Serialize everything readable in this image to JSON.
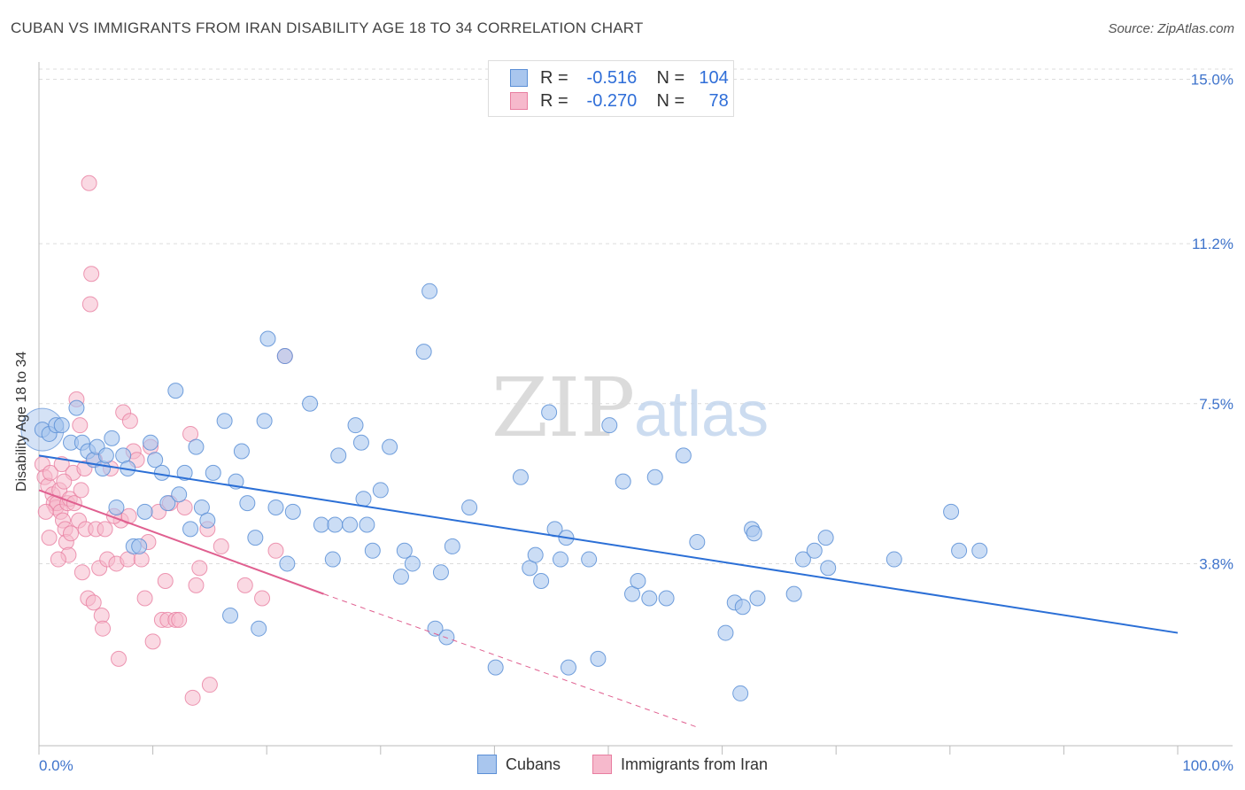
{
  "title": "CUBAN VS IMMIGRANTS FROM IRAN DISABILITY AGE 18 TO 34 CORRELATION CHART",
  "source": "Source: ZipAtlas.com",
  "watermark": {
    "zip": "ZIP",
    "atlas": "atlas"
  },
  "legend": {
    "rows": [
      {
        "r_label": "R =",
        "r_value": "-0.516",
        "n_label": "N =",
        "n_value": "104"
      },
      {
        "r_label": "R =",
        "r_value": "-0.270",
        "n_label": "N =",
        "n_value": "78"
      }
    ]
  },
  "bottom_legend": {
    "cubans": "Cubans",
    "iran": "Immigrants from Iran"
  },
  "chart_data": {
    "type": "scatter",
    "ylabel": "Disability Age 18 to 34",
    "xlabel": "",
    "x_ticks": [
      "0.0%",
      "100.0%"
    ],
    "y_ticks": [
      "3.8%",
      "7.5%",
      "11.2%",
      "15.0%"
    ],
    "xlim": [
      0,
      100
    ],
    "ylim": [
      0,
      15.4
    ],
    "grid": "horizontal dashed",
    "colors": {
      "cubans": "#5b8fd6",
      "cubans_fill": "#a9c6ee",
      "cubans_line": "#2b6fd6",
      "iran": "#e87ea0",
      "iran_fill": "#f6b9cc",
      "iran_line": "#e06090"
    },
    "series": [
      {
        "name": "Cubans",
        "trend": {
          "x": [
            0,
            100
          ],
          "y": [
            6.3,
            2.2
          ]
        },
        "points": [
          [
            0.3,
            6.9
          ],
          [
            0.9,
            6.8
          ],
          [
            1.5,
            7.0
          ],
          [
            2.0,
            7.0
          ],
          [
            2.8,
            6.6
          ],
          [
            3.3,
            7.4
          ],
          [
            3.8,
            6.6
          ],
          [
            4.3,
            6.4
          ],
          [
            4.8,
            6.2
          ],
          [
            5.1,
            6.5
          ],
          [
            5.6,
            6.0
          ],
          [
            5.9,
            6.3
          ],
          [
            6.4,
            6.7
          ],
          [
            6.8,
            5.1
          ],
          [
            7.4,
            6.3
          ],
          [
            7.8,
            6.0
          ],
          [
            8.3,
            4.2
          ],
          [
            8.8,
            4.2
          ],
          [
            9.3,
            5.0
          ],
          [
            9.8,
            6.6
          ],
          [
            10.2,
            6.2
          ],
          [
            10.8,
            5.9
          ],
          [
            11.3,
            5.2
          ],
          [
            12.0,
            7.8
          ],
          [
            12.3,
            5.4
          ],
          [
            12.8,
            5.9
          ],
          [
            13.3,
            4.6
          ],
          [
            13.8,
            6.5
          ],
          [
            14.3,
            5.1
          ],
          [
            14.8,
            4.8
          ],
          [
            15.3,
            5.9
          ],
          [
            16.3,
            7.1
          ],
          [
            16.8,
            2.6
          ],
          [
            17.3,
            5.7
          ],
          [
            17.8,
            6.4
          ],
          [
            18.3,
            5.2
          ],
          [
            19.0,
            4.4
          ],
          [
            19.3,
            2.3
          ],
          [
            19.8,
            7.1
          ],
          [
            20.1,
            9.0
          ],
          [
            20.8,
            5.1
          ],
          [
            21.6,
            8.6
          ],
          [
            21.8,
            3.8
          ],
          [
            22.3,
            5.0
          ],
          [
            23.8,
            7.5
          ],
          [
            24.8,
            4.7
          ],
          [
            25.8,
            3.9
          ],
          [
            26.0,
            4.7
          ],
          [
            26.3,
            6.3
          ],
          [
            27.3,
            4.7
          ],
          [
            27.8,
            7.0
          ],
          [
            28.3,
            6.6
          ],
          [
            28.5,
            5.3
          ],
          [
            28.8,
            4.7
          ],
          [
            29.3,
            4.1
          ],
          [
            30.0,
            5.5
          ],
          [
            30.8,
            6.5
          ],
          [
            31.8,
            3.5
          ],
          [
            32.1,
            4.1
          ],
          [
            32.8,
            3.8
          ],
          [
            33.8,
            8.7
          ],
          [
            34.3,
            10.1
          ],
          [
            34.8,
            2.3
          ],
          [
            35.3,
            3.6
          ],
          [
            35.8,
            2.1
          ],
          [
            36.3,
            4.2
          ],
          [
            37.8,
            5.1
          ],
          [
            40.1,
            1.4
          ],
          [
            42.3,
            5.8
          ],
          [
            43.1,
            3.7
          ],
          [
            43.6,
            4.0
          ],
          [
            44.1,
            3.4
          ],
          [
            44.8,
            7.3
          ],
          [
            45.3,
            4.6
          ],
          [
            45.8,
            3.9
          ],
          [
            46.3,
            4.4
          ],
          [
            46.5,
            1.4
          ],
          [
            48.3,
            3.9
          ],
          [
            49.1,
            1.6
          ],
          [
            50.1,
            7.0
          ],
          [
            51.3,
            5.7
          ],
          [
            52.1,
            3.1
          ],
          [
            52.6,
            3.4
          ],
          [
            53.6,
            3.0
          ],
          [
            54.1,
            5.8
          ],
          [
            55.1,
            3.0
          ],
          [
            56.6,
            6.3
          ],
          [
            57.8,
            4.3
          ],
          [
            60.3,
            2.2
          ],
          [
            61.1,
            2.9
          ],
          [
            61.6,
            0.8
          ],
          [
            61.8,
            2.8
          ],
          [
            62.6,
            4.6
          ],
          [
            62.8,
            4.5
          ],
          [
            63.1,
            3.0
          ],
          [
            66.3,
            3.1
          ],
          [
            67.1,
            3.9
          ],
          [
            68.1,
            4.1
          ],
          [
            69.1,
            4.4
          ],
          [
            69.3,
            3.7
          ],
          [
            75.1,
            3.9
          ],
          [
            80.1,
            5.0
          ],
          [
            80.8,
            4.1
          ],
          [
            82.6,
            4.1
          ]
        ]
      },
      {
        "name": "Immigrants from Iran",
        "trend": {
          "x": [
            0,
            25
          ],
          "y": [
            5.5,
            3.1
          ],
          "dashed_to": {
            "x": 58,
            "y": 0
          }
        },
        "points": [
          [
            0.3,
            6.1
          ],
          [
            0.5,
            5.8
          ],
          [
            0.8,
            5.6
          ],
          [
            1.0,
            5.9
          ],
          [
            1.2,
            5.4
          ],
          [
            1.3,
            5.2
          ],
          [
            1.5,
            5.1
          ],
          [
            1.6,
            5.2
          ],
          [
            1.8,
            5.5
          ],
          [
            1.9,
            5.0
          ],
          [
            2.0,
            6.1
          ],
          [
            2.1,
            4.8
          ],
          [
            2.3,
            4.6
          ],
          [
            2.4,
            4.3
          ],
          [
            2.5,
            5.2
          ],
          [
            2.6,
            4.0
          ],
          [
            2.7,
            5.3
          ],
          [
            2.8,
            4.5
          ],
          [
            3.0,
            5.9
          ],
          [
            3.1,
            5.2
          ],
          [
            3.3,
            7.6
          ],
          [
            3.5,
            4.8
          ],
          [
            3.6,
            7.0
          ],
          [
            3.8,
            3.6
          ],
          [
            4.0,
            6.0
          ],
          [
            4.1,
            4.6
          ],
          [
            4.3,
            3.0
          ],
          [
            4.4,
            12.6
          ],
          [
            4.5,
            9.8
          ],
          [
            4.6,
            10.5
          ],
          [
            4.8,
            2.9
          ],
          [
            5.0,
            4.6
          ],
          [
            5.3,
            3.7
          ],
          [
            5.5,
            2.6
          ],
          [
            5.6,
            2.3
          ],
          [
            5.8,
            4.6
          ],
          [
            6.0,
            3.9
          ],
          [
            6.3,
            6.0
          ],
          [
            6.8,
            3.8
          ],
          [
            7.0,
            1.6
          ],
          [
            7.2,
            4.8
          ],
          [
            7.4,
            7.3
          ],
          [
            7.8,
            3.9
          ],
          [
            7.9,
            4.9
          ],
          [
            8.0,
            7.1
          ],
          [
            8.3,
            6.4
          ],
          [
            8.6,
            6.2
          ],
          [
            9.0,
            3.9
          ],
          [
            9.3,
            3.0
          ],
          [
            9.8,
            6.5
          ],
          [
            10.0,
            2.0
          ],
          [
            10.5,
            5.0
          ],
          [
            10.8,
            2.5
          ],
          [
            11.3,
            2.5
          ],
          [
            11.5,
            5.2
          ],
          [
            12.0,
            2.5
          ],
          [
            12.3,
            2.5
          ],
          [
            12.8,
            5.1
          ],
          [
            13.3,
            6.8
          ],
          [
            13.5,
            0.7
          ],
          [
            13.8,
            3.3
          ],
          [
            14.8,
            4.6
          ],
          [
            15.0,
            1.0
          ],
          [
            16.0,
            4.2
          ],
          [
            18.1,
            3.3
          ],
          [
            19.6,
            3.0
          ],
          [
            20.8,
            4.1
          ],
          [
            21.6,
            8.6
          ],
          [
            0.6,
            5.0
          ],
          [
            0.9,
            4.4
          ],
          [
            1.7,
            3.9
          ],
          [
            2.2,
            5.7
          ],
          [
            3.7,
            5.5
          ],
          [
            4.9,
            6.2
          ],
          [
            6.6,
            4.9
          ],
          [
            9.6,
            4.3
          ],
          [
            11.1,
            3.4
          ],
          [
            14.1,
            3.7
          ]
        ]
      }
    ]
  }
}
